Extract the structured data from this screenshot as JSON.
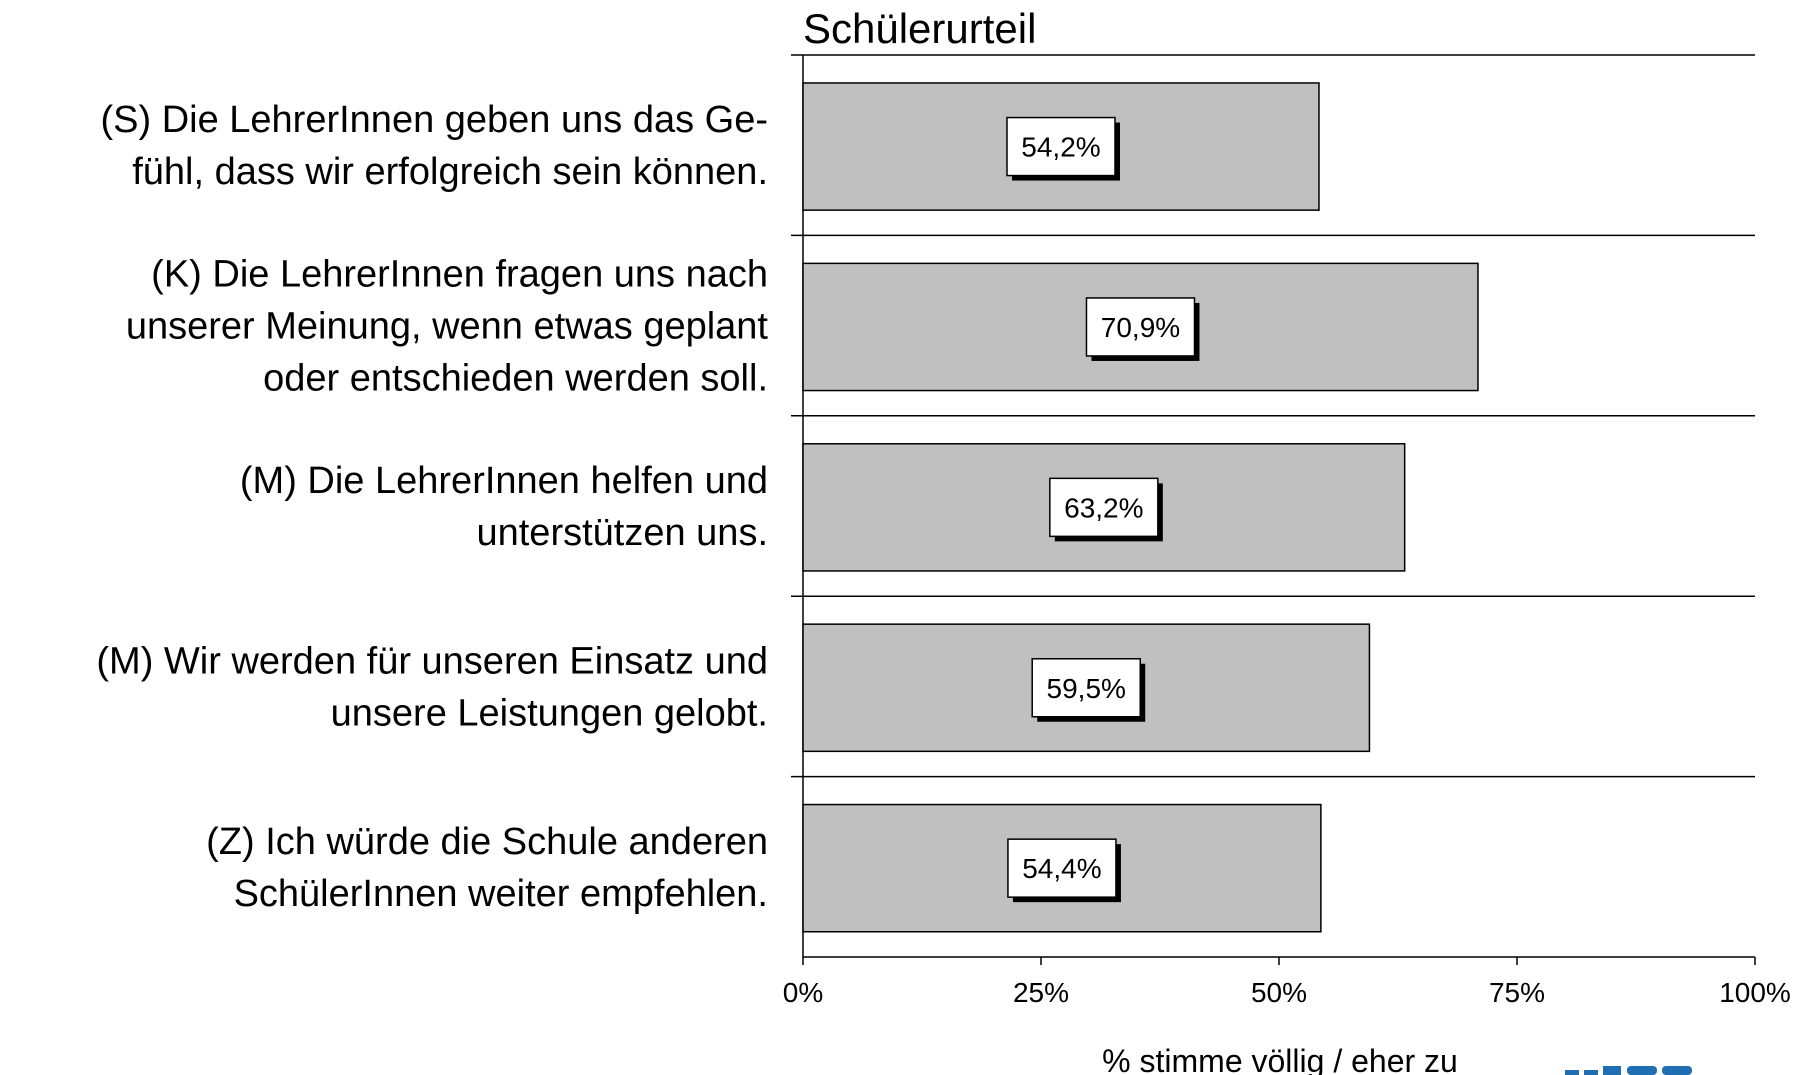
{
  "chart_data": {
    "type": "barh",
    "title": "Schülerurteil",
    "xlabel": "% stimme völlig / eher zu",
    "categories": [
      "(S) Die LehrerInnen geben uns das Ge-\nfühl, dass wir erfolgreich sein können.",
      "(K) Die LehrerInnen fragen uns nach\nunserer Meinung, wenn etwas geplant\noder entschieden werden soll.",
      "(M) Die LehrerInnen helfen und\nunterstützen uns.",
      "(M) Wir werden für unseren Einsatz und\nunsere Leistungen gelobt.",
      "(Z) Ich würde die Schule anderen\nSchülerInnen weiter empfehlen."
    ],
    "values": [
      54.2,
      70.9,
      63.2,
      59.5,
      54.4
    ],
    "value_labels": [
      "54,2%",
      "70,9%",
      "63,2%",
      "59,5%",
      "54,4%"
    ],
    "color": "#c0c0c0",
    "xlim": [
      0,
      100
    ],
    "xticks": [
      {
        "value": 0,
        "label": "0%"
      },
      {
        "value": 25,
        "label": "25%"
      },
      {
        "value": 50,
        "label": "50%"
      },
      {
        "value": 75,
        "label": "75%"
      },
      {
        "value": 100,
        "label": "100%"
      }
    ]
  }
}
